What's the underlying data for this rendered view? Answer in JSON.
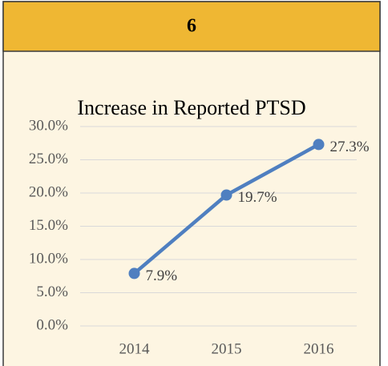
{
  "header": {
    "title": "6"
  },
  "chart_data": {
    "type": "line",
    "title": "Increase in Reported PTSD",
    "categories": [
      "2014",
      "2015",
      "2016"
    ],
    "series": [
      {
        "name": null,
        "color": "#4f7fc0",
        "values": [
          7.9,
          19.7,
          27.3
        ],
        "value_labels": [
          "7.9%",
          "19.7%",
          "27.3%"
        ]
      }
    ],
    "ylim": [
      0,
      30
    ],
    "yticks": [
      {
        "value": 0,
        "label": "0.0%"
      },
      {
        "value": 5,
        "label": "5.0%"
      },
      {
        "value": 10,
        "label": "10.0%"
      },
      {
        "value": 15,
        "label": "15.0%"
      },
      {
        "value": 20,
        "label": "20.0%"
      },
      {
        "value": 25,
        "label": "25.0%"
      },
      {
        "value": 30,
        "label": "30.0%"
      }
    ],
    "grid": true
  }
}
